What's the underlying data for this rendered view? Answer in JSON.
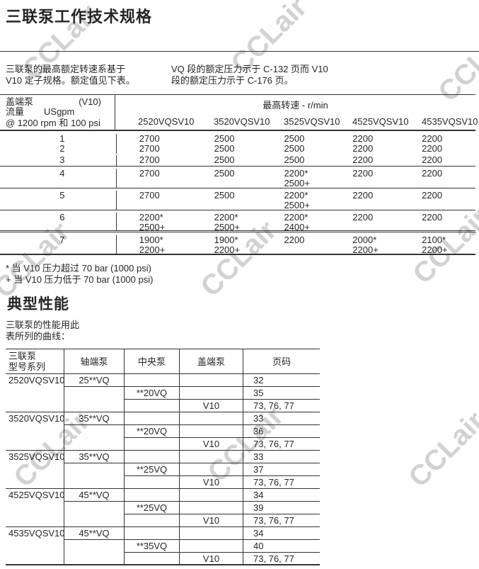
{
  "watermark": {
    "text": "CCLair",
    "color": "#d2d2d2"
  },
  "header": {
    "title": "三联泵工作技术规格"
  },
  "intro": {
    "left": "三联泵的最高额定转速系基于\nV10 定子规格。额定值见下表。",
    "right": "VQ 段的额定压力示于 C-132 页而 V10\n段的额定压力示于 C-176 页。"
  },
  "table1": {
    "corner": {
      "cover_pump": "盖端泵",
      "stator": "(V10)",
      "flow": "流量",
      "unit": "USgpm",
      "condition": "@ 1200 rpm 和 100 psi"
    },
    "speed_header": "最高转速 - r/min",
    "models": [
      "2520VQSV10",
      "3520VQSV10",
      "3525VQSV10",
      "4525VQSV10",
      "4535VQSV10"
    ],
    "rows": [
      {
        "flow": "1",
        "sep": "r1",
        "cells": [
          [
            "2700"
          ],
          [
            "2500"
          ],
          [
            "2500"
          ],
          [
            "2200"
          ],
          [
            "2200"
          ]
        ]
      },
      {
        "flow": "2",
        "sep": "r2",
        "cells": [
          [
            "2700"
          ],
          [
            "2500"
          ],
          [
            "2500"
          ],
          [
            "2200"
          ],
          [
            "2200"
          ]
        ]
      },
      {
        "flow": "3",
        "sep": "r3",
        "cells": [
          [
            "2700"
          ],
          [
            "2500"
          ],
          [
            "2500"
          ],
          [
            "2200"
          ],
          [
            "2200"
          ]
        ]
      },
      {
        "flow": "4",
        "sep": "r4",
        "cells": [
          [
            "2700"
          ],
          [
            "2500"
          ],
          [
            "2200*",
            "2500+"
          ],
          [
            "2200"
          ],
          [
            "2200"
          ]
        ]
      },
      {
        "flow": "5",
        "sep": "r5",
        "cells": [
          [
            "2700"
          ],
          [
            "2500"
          ],
          [
            "2200*",
            "2500+"
          ],
          [
            "2200"
          ],
          [
            "2200"
          ]
        ]
      },
      {
        "flow": "6",
        "sep": "r6",
        "cells": [
          [
            "2200*",
            "2500+"
          ],
          [
            "2200*",
            "2500+"
          ],
          [
            "2200*",
            "2400+"
          ],
          [
            "2200"
          ],
          [
            "2200"
          ]
        ]
      },
      {
        "flow": "7",
        "sep": "r7",
        "cells": [
          [
            "1900*",
            "2200+"
          ],
          [
            "1900*",
            "2200+"
          ],
          [
            "2200"
          ],
          [
            "2000*",
            "2200+"
          ],
          [
            "2100*",
            "2200+"
          ]
        ]
      }
    ]
  },
  "footnotes": {
    "star": "* 当 V10 压力超过  70 bar (1000 psi)",
    "plus": "+ 当 V10 压力低于 70 bar (1000 psi)"
  },
  "section2": {
    "title": "典型性能",
    "intro": "三联泵的性能用此\n表所列的曲线："
  },
  "table2": {
    "headers": [
      "三联泵\n型号系列",
      "轴端泵",
      "中央泵",
      "盖端泵",
      "页码"
    ],
    "rows": [
      {
        "model": "2520VQSV10",
        "shaft": "25**VQ",
        "center": "",
        "cover": "",
        "pages": "32",
        "sep": "from2"
      },
      {
        "model": "",
        "shaft": "",
        "center": "**20VQ",
        "cover": "",
        "pages": "35",
        "sep": "from3"
      },
      {
        "model": "",
        "shaft": "",
        "center": "",
        "cover": "V10",
        "pages": "73, 76, 77",
        "sep": "full"
      },
      {
        "model": "3520VQSV10",
        "shaft": "35**VQ",
        "center": "",
        "cover": "",
        "pages": "33",
        "sep": "from2"
      },
      {
        "model": "",
        "shaft": "",
        "center": "**20VQ",
        "cover": "",
        "pages": "36",
        "sep": "from3"
      },
      {
        "model": "",
        "shaft": "",
        "center": "",
        "cover": "V10",
        "pages": "73, 76, 77",
        "sep": "full"
      },
      {
        "model": "3525VQSV10",
        "shaft": "35**VQ",
        "center": "",
        "cover": "",
        "pages": "33",
        "sep": "from2"
      },
      {
        "model": "",
        "shaft": "",
        "center": "**25VQ",
        "cover": "",
        "pages": "37",
        "sep": "from3"
      },
      {
        "model": "",
        "shaft": "",
        "center": "",
        "cover": "V10",
        "pages": "73, 76, 77",
        "sep": "full"
      },
      {
        "model": "4525VQSV10",
        "shaft": "45**VQ",
        "center": "",
        "cover": "",
        "pages": "34",
        "sep": "from2"
      },
      {
        "model": "",
        "shaft": "",
        "center": "**25VQ",
        "cover": "",
        "pages": "39",
        "sep": "from3"
      },
      {
        "model": "",
        "shaft": "",
        "center": "",
        "cover": "V10",
        "pages": "73, 76, 77",
        "sep": "full"
      },
      {
        "model": "4535VQSV10",
        "shaft": "45**VQ",
        "center": "",
        "cover": "",
        "pages": "34",
        "sep": "from2"
      },
      {
        "model": "",
        "shaft": "",
        "center": "**35VQ",
        "cover": "",
        "pages": "40",
        "sep": "from3"
      },
      {
        "model": "",
        "shaft": "",
        "center": "",
        "cover": "V10",
        "pages": "73, 76, 77",
        "sep": "full"
      }
    ]
  }
}
